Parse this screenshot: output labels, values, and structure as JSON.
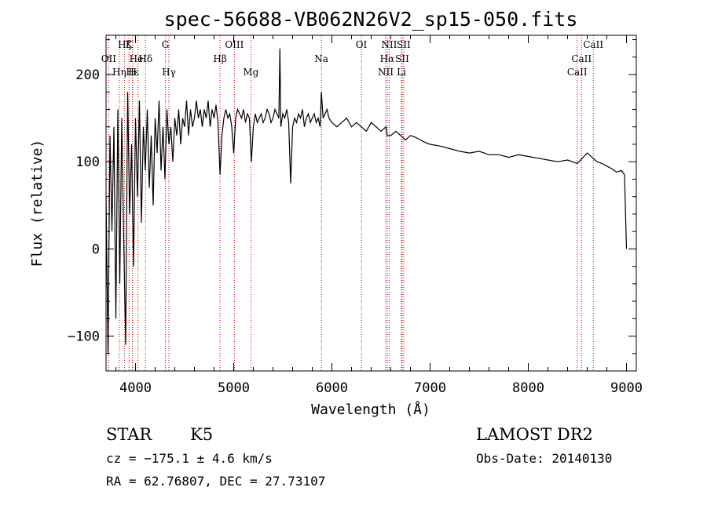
{
  "chart_data": {
    "type": "line",
    "title": "spec-56688-VB062N26V2_sp15-050.fits",
    "xlabel": "Wavelength (Å)",
    "ylabel": "Flux (relative)",
    "xlim": [
      3700,
      9100
    ],
    "ylim": [
      -140,
      245
    ],
    "x_ticks": [
      4000,
      5000,
      6000,
      7000,
      8000,
      9000
    ],
    "x_tick_labels": [
      "4000",
      "5000",
      "6000",
      "7000",
      "8000",
      "9000"
    ],
    "y_ticks": [
      -100,
      0,
      100,
      200
    ],
    "y_tick_labels": [
      "−100",
      "0",
      "100",
      "200"
    ],
    "grid": false,
    "series": [
      {
        "color": "#000000",
        "x": [
          3700,
          3720,
          3740,
          3760,
          3780,
          3800,
          3820,
          3840,
          3860,
          3880,
          3900,
          3920,
          3940,
          3960,
          3980,
          4000,
          4020,
          4040,
          4060,
          4080,
          4100,
          4120,
          4140,
          4160,
          4180,
          4200,
          4220,
          4240,
          4260,
          4280,
          4300,
          4320,
          4340,
          4360,
          4380,
          4400,
          4420,
          4440,
          4460,
          4480,
          4500,
          4520,
          4540,
          4560,
          4580,
          4600,
          4620,
          4640,
          4660,
          4680,
          4700,
          4720,
          4740,
          4760,
          4780,
          4800,
          4820,
          4840,
          4861,
          4880,
          4900,
          4920,
          4940,
          4960,
          4980,
          5000,
          5020,
          5040,
          5060,
          5080,
          5100,
          5120,
          5140,
          5160,
          5180,
          5200,
          5220,
          5240,
          5260,
          5280,
          5300,
          5320,
          5340,
          5360,
          5380,
          5400,
          5420,
          5440,
          5460,
          5470,
          5480,
          5500,
          5520,
          5540,
          5560,
          5580,
          5600,
          5620,
          5640,
          5660,
          5680,
          5700,
          5720,
          5740,
          5760,
          5780,
          5800,
          5820,
          5840,
          5860,
          5880,
          5893,
          5910,
          5930,
          5950,
          5970,
          6000,
          6050,
          6100,
          6150,
          6200,
          6250,
          6300,
          6350,
          6400,
          6450,
          6500,
          6550,
          6563,
          6600,
          6650,
          6700,
          6750,
          6800,
          6850,
          6900,
          6950,
          7000,
          7100,
          7200,
          7300,
          7400,
          7500,
          7600,
          7700,
          7800,
          7900,
          8000,
          8100,
          8200,
          8300,
          8400,
          8500,
          8600,
          8650,
          8700,
          8750,
          8800,
          8850,
          8900,
          8950,
          8980,
          9000
        ],
        "y": [
          60,
          -120,
          130,
          20,
          140,
          -80,
          160,
          -40,
          150,
          10,
          -110,
          180,
          40,
          120,
          -20,
          150,
          60,
          170,
          30,
          140,
          90,
          160,
          70,
          130,
          50,
          150,
          110,
          170,
          90,
          140,
          80,
          160,
          120,
          140,
          100,
          150,
          130,
          160,
          120,
          150,
          140,
          170,
          130,
          160,
          140,
          150,
          170,
          150,
          160,
          140,
          160,
          150,
          170,
          140,
          160,
          150,
          165,
          145,
          85,
          130,
          150,
          160,
          150,
          155,
          140,
          110,
          150,
          160,
          155,
          150,
          160,
          145,
          155,
          150,
          100,
          140,
          155,
          145,
          150,
          155,
          145,
          150,
          160,
          155,
          145,
          150,
          160,
          155,
          150,
          230,
          140,
          155,
          150,
          160,
          145,
          75,
          140,
          150,
          145,
          155,
          150,
          160,
          140,
          150,
          155,
          145,
          150,
          155,
          145,
          150,
          140,
          180,
          150,
          155,
          160,
          150,
          145,
          140,
          145,
          150,
          140,
          145,
          140,
          135,
          145,
          140,
          135,
          140,
          130,
          130,
          135,
          130,
          125,
          130,
          128,
          125,
          122,
          120,
          118,
          115,
          112,
          110,
          112,
          108,
          108,
          105,
          108,
          106,
          104,
          102,
          100,
          102,
          98,
          110,
          105,
          100,
          98,
          95,
          92,
          88,
          90,
          85,
          0
        ]
      }
    ],
    "line_markers": [
      {
        "x": 3727,
        "label": "OII",
        "row": 2
      },
      {
        "x": 3835,
        "label": "Hη",
        "row": 3
      },
      {
        "x": 3889,
        "label": "Hζ",
        "row": 1
      },
      {
        "x": 3934,
        "label": "K",
        "row": 1
      },
      {
        "x": 3969,
        "label": "H",
        "row": 3
      },
      {
        "x": 3970,
        "label": "Hε",
        "row": 3
      },
      {
        "x": 4026,
        "label": "HeI",
        "row": 2
      },
      {
        "x": 4102,
        "label": "Hδ",
        "row": 2
      },
      {
        "x": 4304,
        "label": "G",
        "row": 1
      },
      {
        "x": 4340,
        "label": "Hγ",
        "row": 3
      },
      {
        "x": 4861,
        "label": "Hβ",
        "row": 2
      },
      {
        "x": 5007,
        "label": "OIII",
        "row": 1
      },
      {
        "x": 5175,
        "label": "Mg",
        "row": 3
      },
      {
        "x": 5893,
        "label": "Na",
        "row": 2
      },
      {
        "x": 6300,
        "label": "OI",
        "row": 1
      },
      {
        "x": 6548,
        "label": "NII",
        "row": 3
      },
      {
        "x": 6563,
        "label": "Hα",
        "row": 2
      },
      {
        "x": 6583,
        "label": "NII",
        "row": 1
      },
      {
        "x": 6708,
        "label": "Li",
        "row": 3
      },
      {
        "x": 6716,
        "label": "SII",
        "row": 2
      },
      {
        "x": 6731,
        "label": "SII",
        "row": 1
      },
      {
        "x": 8498,
        "label": "CaII",
        "row": 3
      },
      {
        "x": 8542,
        "label": "CaII",
        "row": 2
      },
      {
        "x": 8662,
        "label": "CaII",
        "row": 1
      }
    ]
  },
  "footer": {
    "object_class": "STAR",
    "subclass": "K5",
    "survey": "LAMOST DR2",
    "redshift_text": "cz = −175.1 ± 4.6 km/s",
    "obs_date_text": "Obs-Date: 20140130",
    "coords_text": "RA =  62.76807, DEC =  27.73107"
  }
}
